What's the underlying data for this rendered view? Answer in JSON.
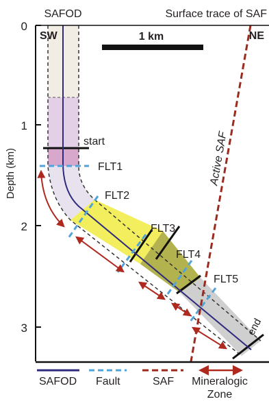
{
  "title_left": "SAFOD",
  "title_right": "Surface trace of SAF",
  "corner_left": "SW",
  "corner_right": "NE",
  "scale_label": "1 km",
  "y_axis_label": "Depth (km)",
  "y_ticks": [
    "0",
    "1",
    "2",
    "3"
  ],
  "active_saf_label": "Active SAF",
  "start_label": "start",
  "end_label": "end",
  "faults": [
    "FLT1",
    "FLT2",
    "FLT3",
    "FLT4",
    "FLT5"
  ],
  "legend": {
    "safod": "SAFOD",
    "fault": "Fault",
    "saf": "SAF",
    "zone_line1": "Mineralogic",
    "zone_line2": "Zone"
  },
  "colors": {
    "safod_line": "#2e2a7c",
    "fault_dash": "#4fa3d9",
    "saf": "#9b2a1f",
    "zone_arrow": "#b0291f",
    "zone_beige": "#f1ece4",
    "zone_pink": "#e4d0e6",
    "zone_mauve": "#d8a8cc",
    "zone_lavender": "#e8e2ef",
    "zone_yellow": "#f3ee5d",
    "zone_olive": "#aeae45",
    "zone_grey": "#cfcfcf"
  }
}
